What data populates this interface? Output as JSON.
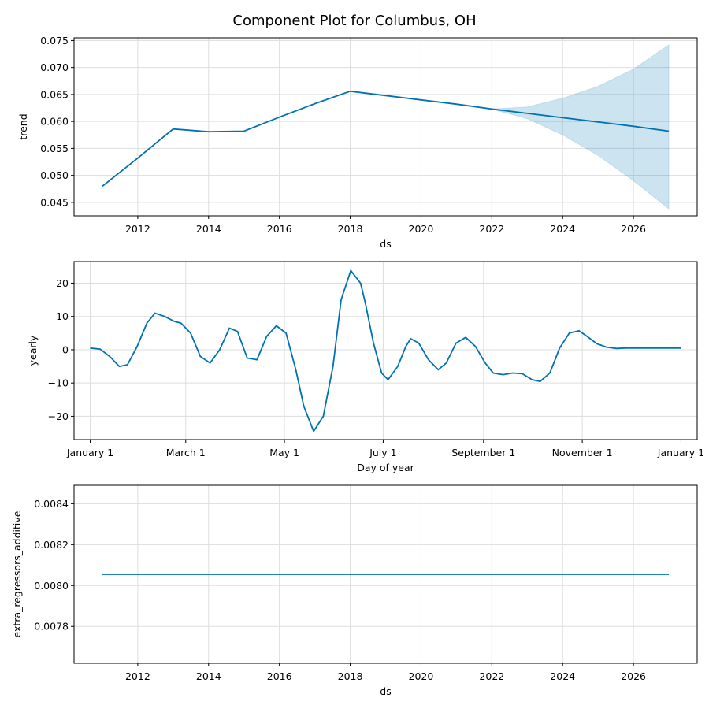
{
  "figure": {
    "title": "Component Plot for Columbus, OH"
  },
  "chart_data": [
    {
      "type": "line",
      "xlabel": "ds",
      "ylabel": "trend",
      "xlim": [
        2010.2,
        2027.8
      ],
      "ylim": [
        0.0425,
        0.0755
      ],
      "xticks": [
        2012,
        2014,
        2016,
        2018,
        2020,
        2022,
        2024,
        2026
      ],
      "xtick_labels": [
        "2012",
        "2014",
        "2016",
        "2018",
        "2020",
        "2022",
        "2024",
        "2026"
      ],
      "yticks": [
        0.045,
        0.05,
        0.055,
        0.06,
        0.065,
        0.07,
        0.075
      ],
      "ytick_labels": [
        "0.045",
        "0.050",
        "0.055",
        "0.060",
        "0.065",
        "0.070",
        "0.075"
      ],
      "grid": true,
      "x": [
        2011,
        2012,
        2013,
        2014,
        2015,
        2016,
        2017,
        2018,
        2019,
        2020,
        2021,
        2022,
        2023,
        2024,
        2025,
        2026,
        2027
      ],
      "y": [
        0.048,
        0.0532,
        0.0586,
        0.0581,
        0.0582,
        0.0608,
        0.0633,
        0.0656,
        0.0648,
        0.064,
        0.0632,
        0.0623,
        0.0615,
        0.0607,
        0.0599,
        0.0591,
        0.0582
      ],
      "band_x": [
        2022,
        2023,
        2024,
        2025,
        2026,
        2027
      ],
      "band_upper": [
        0.0623,
        0.0627,
        0.0643,
        0.0665,
        0.0697,
        0.0742
      ],
      "band_lower": [
        0.0623,
        0.0605,
        0.0575,
        0.0537,
        0.049,
        0.0438
      ]
    },
    {
      "type": "line",
      "xlabel": "Day of year",
      "ylabel": "yearly",
      "xlim": [
        -10,
        375
      ],
      "ylim": [
        -27,
        26.5
      ],
      "xticks": [
        0,
        59,
        120,
        181,
        243,
        304,
        365
      ],
      "xtick_labels": [
        "January 1",
        "March 1",
        "May 1",
        "July 1",
        "September 1",
        "November 1",
        "January 1"
      ],
      "yticks": [
        -20,
        -10,
        0,
        10,
        20
      ],
      "ytick_labels": [
        "−20",
        "−10",
        "0",
        "10",
        "20"
      ],
      "grid": true,
      "x": [
        0,
        6,
        12,
        18,
        23,
        29,
        35,
        40,
        46,
        52,
        56,
        62,
        68,
        74,
        80,
        86,
        91,
        97,
        103,
        109,
        115,
        121,
        127,
        132,
        138,
        144,
        150,
        155,
        161,
        167,
        170,
        175,
        180,
        184,
        190,
        195,
        198,
        203,
        209,
        215,
        220,
        226,
        232,
        238,
        244,
        249,
        255,
        261,
        267,
        273,
        278,
        284,
        290,
        296,
        302,
        307,
        313,
        319,
        325,
        331,
        336,
        342,
        348,
        354,
        360,
        365
      ],
      "y": [
        0.5,
        0.2,
        -2,
        -5,
        -4.5,
        1,
        8,
        11,
        10,
        8.5,
        8,
        5,
        -2,
        -4,
        0,
        6.5,
        5.5,
        -2.5,
        -3,
        4,
        7.2,
        5,
        -6,
        -17,
        -24.5,
        -20,
        -5,
        15,
        23.8,
        20,
        14,
        2,
        -7,
        -9,
        -5,
        1,
        3.3,
        2,
        -3,
        -6,
        -4,
        2,
        3.7,
        1,
        -4,
        -7,
        -7.5,
        -7,
        -7.2,
        -9,
        -9.5,
        -7,
        0.5,
        5,
        5.7,
        4,
        1.8,
        0.8,
        0.4,
        0.5,
        0.5,
        0.5,
        0.5,
        0.5,
        0.5,
        0.5
      ],
      "series_note": ""
    },
    {
      "type": "line",
      "xlabel": "ds",
      "ylabel": "extra_regressors_additive",
      "xlim": [
        2010.2,
        2027.8
      ],
      "ylim": [
        0.00762,
        0.00849
      ],
      "xticks": [
        2012,
        2014,
        2016,
        2018,
        2020,
        2022,
        2024,
        2026
      ],
      "xtick_labels": [
        "2012",
        "2014",
        "2016",
        "2018",
        "2020",
        "2022",
        "2024",
        "2026"
      ],
      "yticks": [
        0.0078,
        0.008,
        0.0082,
        0.0084
      ],
      "ytick_labels": [
        "0.0078",
        "0.0080",
        "0.0082",
        "0.0084"
      ],
      "grid": true,
      "x": [
        2011,
        2027
      ],
      "y": [
        0.008055,
        0.008055
      ]
    }
  ]
}
